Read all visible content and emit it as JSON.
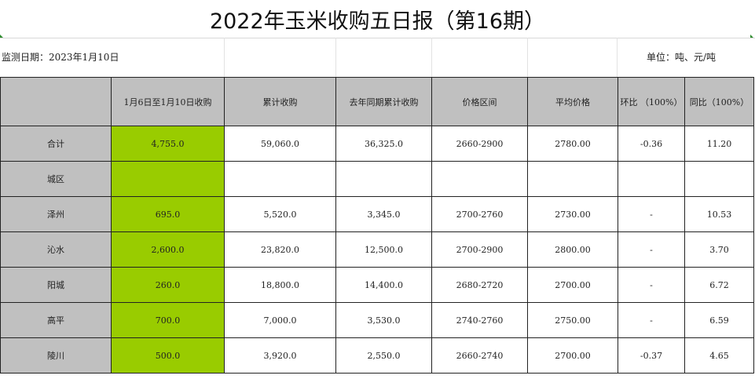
{
  "title": "2022年玉米收购五日报（第16期）",
  "meta": {
    "monitor_date": "监测日期：2023年1月10日",
    "unit": "单位：吨、元/吨"
  },
  "colors": {
    "header_gray": "#c0c0c0",
    "highlight_green": "#99cc00"
  },
  "table": {
    "columns": [
      "",
      "1月6日至1月10日收购",
      "累计收购",
      "去年同期累计收购",
      "价格区间",
      "平均价格",
      "环比 （100%）",
      "同比（100%）"
    ],
    "rows": [
      {
        "name": "合计",
        "period": "4,755.0",
        "cumulative": "59,060.0",
        "last_year": "36,325.0",
        "price_range": "2660-2900",
        "avg_price": "2780.00",
        "mom": "-0.36",
        "yoy": "11.20"
      },
      {
        "name": "城区",
        "period": "",
        "cumulative": "",
        "last_year": "",
        "price_range": "",
        "avg_price": "",
        "mom": "",
        "yoy": ""
      },
      {
        "name": "泽州",
        "period": "695.0",
        "cumulative": "5,520.0",
        "last_year": "3,345.0",
        "price_range": "2700-2760",
        "avg_price": "2730.00",
        "mom": "-",
        "yoy": "10.53"
      },
      {
        "name": "沁水",
        "period": "2,600.0",
        "cumulative": "23,820.0",
        "last_year": "12,500.0",
        "price_range": "2700-2900",
        "avg_price": "2800.00",
        "mom": "-",
        "yoy": "3.70"
      },
      {
        "name": "阳城",
        "period": "260.0",
        "cumulative": "18,800.0",
        "last_year": "14,400.0",
        "price_range": "2680-2720",
        "avg_price": "2700.00",
        "mom": "-",
        "yoy": "6.72"
      },
      {
        "name": "高平",
        "period": "700.0",
        "cumulative": "7,000.0",
        "last_year": "3,530.0",
        "price_range": "2740-2760",
        "avg_price": "2750.00",
        "mom": "-",
        "yoy": "6.59"
      },
      {
        "name": "陵川",
        "period": "500.0",
        "cumulative": "3,920.0",
        "last_year": "2,550.0",
        "price_range": "2660-2740",
        "avg_price": "2700.00",
        "mom": "-0.37",
        "yoy": "4.65"
      }
    ]
  }
}
